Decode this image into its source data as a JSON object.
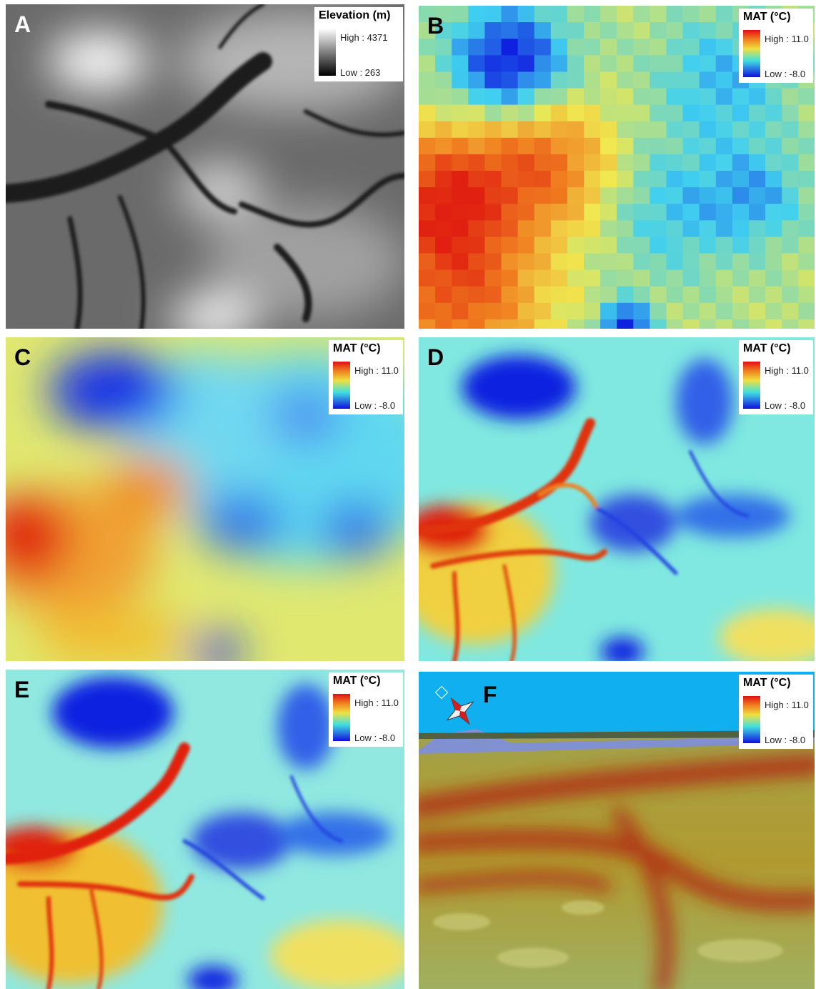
{
  "panels": [
    {
      "label": "A",
      "legend": {
        "title": "Elevation (m)",
        "high": "High : 4371",
        "low": "Low : 263"
      }
    },
    {
      "label": "B",
      "legend": {
        "title": "MAT (°C)",
        "high": "High : 11.0",
        "low": "Low : -8.0"
      }
    },
    {
      "label": "C",
      "legend": {
        "title": "MAT (°C)",
        "high": "High : 11.0",
        "low": "Low : -8.0"
      }
    },
    {
      "label": "D",
      "legend": {
        "title": "MAT (°C)",
        "high": "High : 11.0",
        "low": "Low : -8.0"
      }
    },
    {
      "label": "E",
      "legend": {
        "title": "MAT (°C)",
        "high": "High : 11.0",
        "low": "Low : -8.0"
      }
    },
    {
      "label": "F",
      "legend": {
        "title": "MAT (°C)",
        "high": "High : 11.0",
        "low": "Low : -8.0"
      }
    }
  ]
}
